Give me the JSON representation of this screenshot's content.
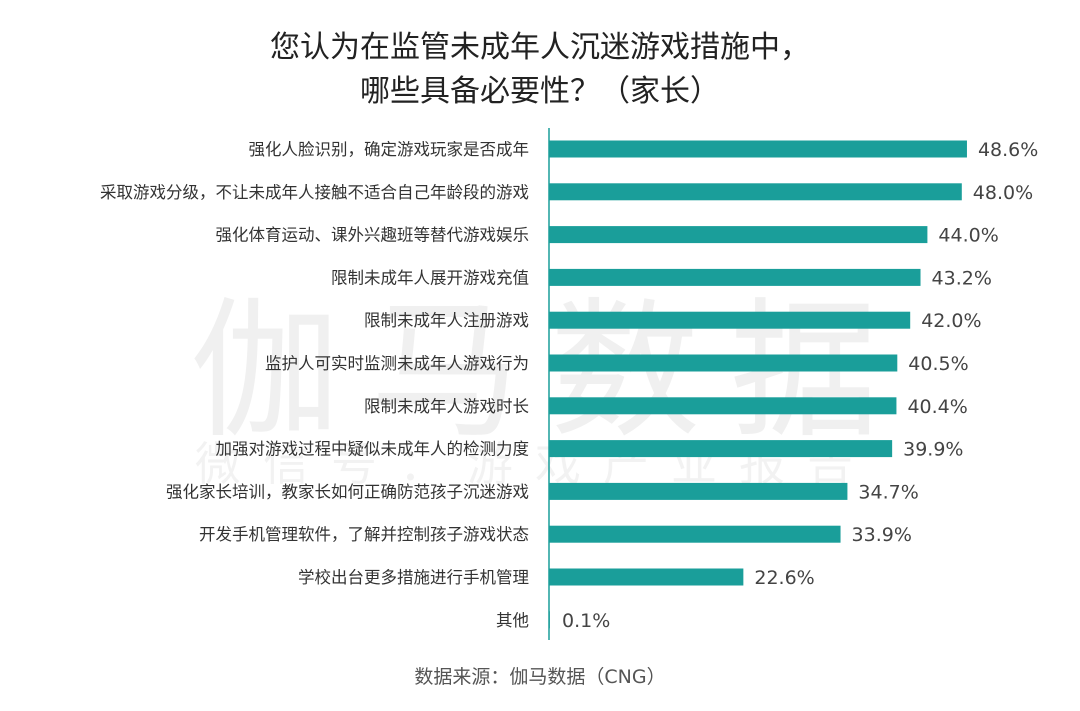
{
  "chart_data": {
    "type": "bar",
    "orientation": "horizontal",
    "title_line1": "您认为在监管未成年人沉迷游戏措施中，",
    "title_line2": "哪些具备必要性？（家长）",
    "categories": [
      "强化人脸识别，确定游戏玩家是否成年",
      "采取游戏分级，不让未成年人接触不适合自己年龄段的游戏",
      "强化体育运动、课外兴趣班等替代游戏娱乐",
      "限制未成年人展开游戏充值",
      "限制未成年人注册游戏",
      "监护人可实时监测未成年人游戏行为",
      "限制未成年人游戏时长",
      "加强对游戏过程中疑似未成年人的检测力度",
      "强化家长培训，教家长如何正确防范孩子沉迷游戏",
      "开发手机管理软件，了解并控制孩子游戏状态",
      "学校出台更多措施进行手机管理",
      "其他"
    ],
    "values": [
      48.6,
      48.0,
      44.0,
      43.2,
      42.0,
      40.5,
      40.4,
      39.9,
      34.7,
      33.9,
      22.6,
      0.1
    ],
    "value_labels": [
      "48.6%",
      "48.0%",
      "44.0%",
      "43.2%",
      "42.0%",
      "40.5%",
      "40.4%",
      "39.9%",
      "34.7%",
      "33.9%",
      "22.6%",
      "0.1%"
    ],
    "xlim": [
      0,
      55
    ],
    "bar_color": "#1a9e9a",
    "axis_color": "#1a9e9a",
    "grid": false
  },
  "watermark": {
    "main": "伽马数据",
    "sub": "微信号：游戏产业报告"
  },
  "source": "数据来源：伽马数据（CNG）"
}
